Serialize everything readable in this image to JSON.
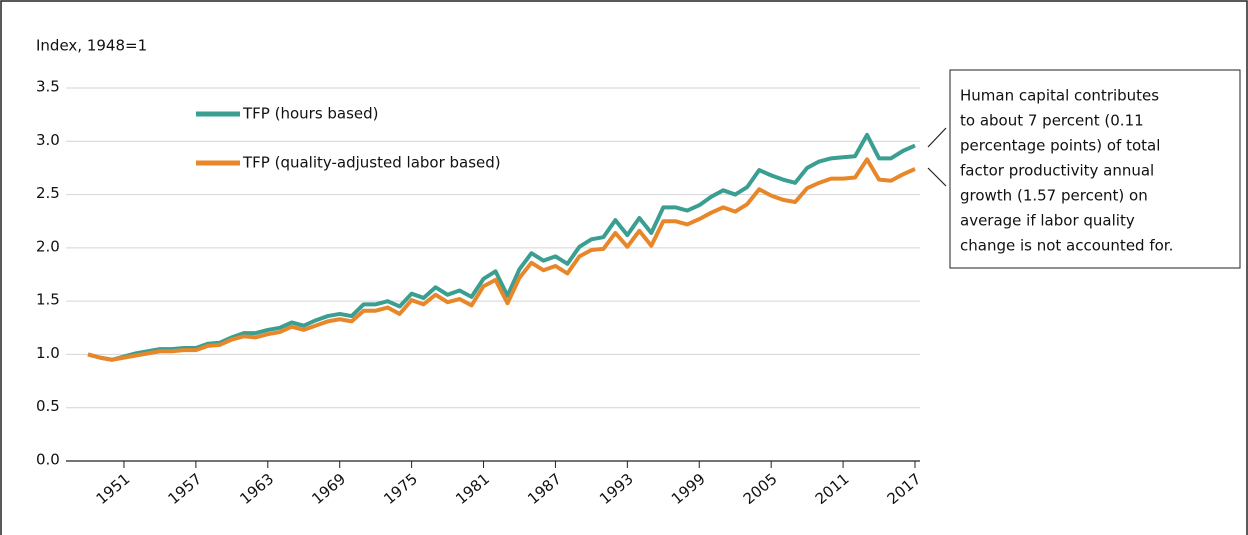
{
  "chart_data": {
    "type": "line",
    "axis_title": "Index, 1948=1",
    "x": [
      1948,
      1949,
      1950,
      1951,
      1952,
      1953,
      1954,
      1955,
      1956,
      1957,
      1958,
      1959,
      1960,
      1961,
      1962,
      1963,
      1964,
      1965,
      1966,
      1967,
      1968,
      1969,
      1970,
      1971,
      1972,
      1973,
      1974,
      1975,
      1976,
      1977,
      1978,
      1979,
      1980,
      1981,
      1982,
      1983,
      1984,
      1985,
      1986,
      1987,
      1988,
      1989,
      1990,
      1991,
      1992,
      1993,
      1994,
      1995,
      1996,
      1997,
      1998,
      1999,
      2000,
      2001,
      2002,
      2003,
      2004,
      2005,
      2006,
      2007,
      2008,
      2009,
      2010,
      2011,
      2012,
      2013,
      2014,
      2015,
      2016,
      2017
    ],
    "series": [
      {
        "name": "TFP (hours based)",
        "color": "#3a9e91",
        "values": [
          1.0,
          0.97,
          0.95,
          0.98,
          1.01,
          1.03,
          1.05,
          1.05,
          1.06,
          1.06,
          1.1,
          1.11,
          1.16,
          1.2,
          1.2,
          1.23,
          1.25,
          1.3,
          1.27,
          1.32,
          1.36,
          1.38,
          1.36,
          1.47,
          1.47,
          1.5,
          1.45,
          1.57,
          1.53,
          1.63,
          1.56,
          1.6,
          1.54,
          1.71,
          1.78,
          1.55,
          1.8,
          1.95,
          1.88,
          1.92,
          1.85,
          2.01,
          2.08,
          2.1,
          2.26,
          2.12,
          2.28,
          2.14,
          2.38,
          2.38,
          2.35,
          2.4,
          2.48,
          2.54,
          2.5,
          2.57,
          2.73,
          2.68,
          2.64,
          2.61,
          2.75,
          2.81,
          2.84,
          2.85,
          2.86,
          3.06,
          2.84,
          2.84,
          2.91,
          2.96
        ]
      },
      {
        "name": "TFP (quality-adjusted labor based)",
        "color": "#e8862a",
        "values": [
          1.0,
          0.97,
          0.95,
          0.97,
          0.99,
          1.01,
          1.03,
          1.03,
          1.04,
          1.04,
          1.08,
          1.09,
          1.14,
          1.17,
          1.16,
          1.19,
          1.21,
          1.26,
          1.23,
          1.27,
          1.31,
          1.33,
          1.31,
          1.41,
          1.41,
          1.44,
          1.38,
          1.51,
          1.47,
          1.56,
          1.49,
          1.52,
          1.46,
          1.64,
          1.7,
          1.48,
          1.72,
          1.86,
          1.79,
          1.83,
          1.76,
          1.92,
          1.98,
          1.99,
          2.14,
          2.01,
          2.16,
          2.02,
          2.25,
          2.25,
          2.22,
          2.27,
          2.33,
          2.38,
          2.34,
          2.41,
          2.55,
          2.49,
          2.45,
          2.43,
          2.56,
          2.61,
          2.65,
          2.65,
          2.66,
          2.83,
          2.64,
          2.63,
          2.69,
          2.74
        ]
      }
    ],
    "xlim": [
      1948,
      2017
    ],
    "xticks": [
      1951,
      1957,
      1963,
      1969,
      1975,
      1981,
      1987,
      1993,
      1999,
      2005,
      2011,
      2017
    ],
    "ylim": [
      0,
      3.5
    ],
    "yticks": [
      {
        "value": 0,
        "label": "0.0"
      },
      0.5,
      {
        "value": 1,
        "label": "1.0"
      },
      1.5,
      {
        "value": 2,
        "label": "2.0"
      },
      2.5,
      {
        "value": 3,
        "label": "3.0"
      },
      3.5
    ],
    "grid": true,
    "annotation": [
      "Human capital contributes",
      "to about 7 percent (0.11",
      "percentage points) of total",
      "factor productivity annual",
      "growth (1.57 percent) on",
      "average if labor quality",
      "change is not accounted for."
    ]
  }
}
